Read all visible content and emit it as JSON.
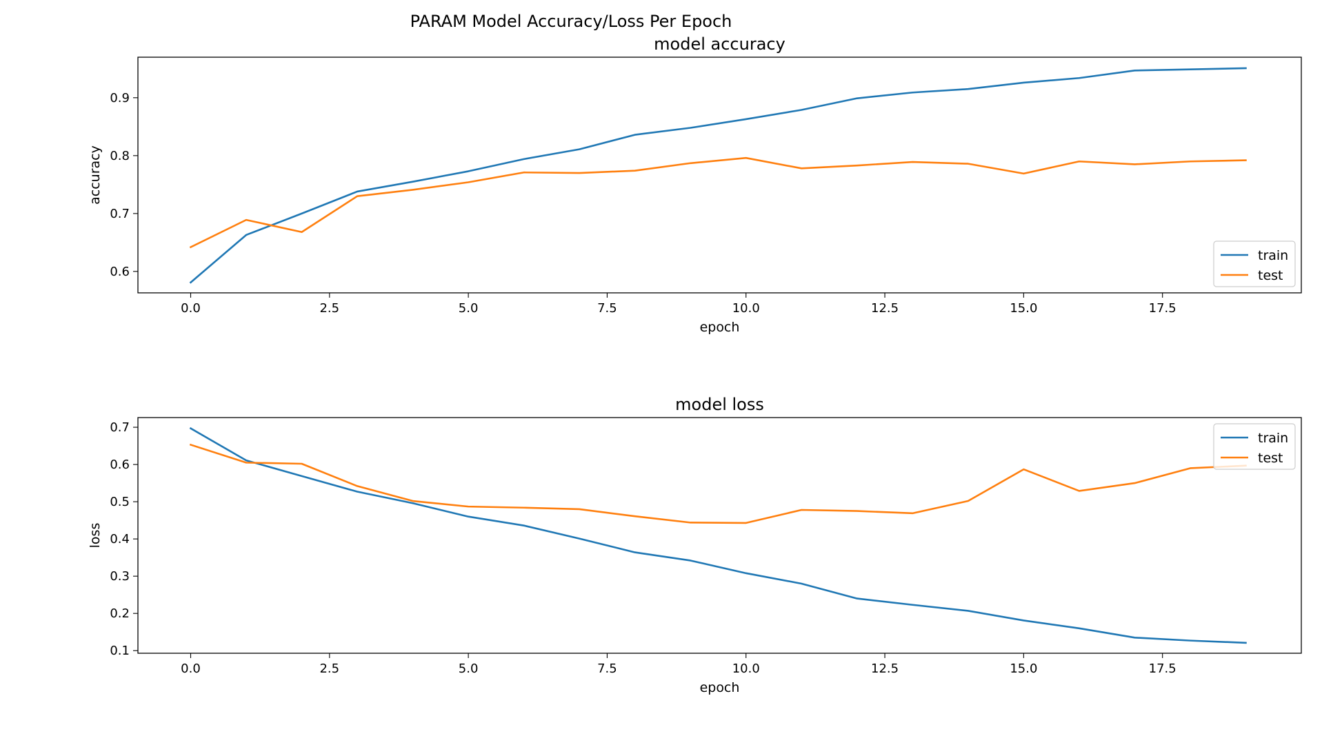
{
  "figure": {
    "suptitle": "PARAM Model Accuracy/Loss Per Epoch"
  },
  "chart_data": [
    {
      "type": "line",
      "title": "model accuracy",
      "xlabel": "epoch",
      "ylabel": "accuracy",
      "xlim": [
        -0.95,
        20.0
      ],
      "ylim": [
        0.563,
        0.97
      ],
      "x_ticks": [
        0.0,
        2.5,
        5.0,
        7.5,
        10.0,
        12.5,
        15.0,
        17.5
      ],
      "x_tick_labels": [
        "0.0",
        "2.5",
        "5.0",
        "7.5",
        "10.0",
        "12.5",
        "15.0",
        "17.5"
      ],
      "y_ticks": [
        0.6,
        0.7,
        0.8,
        0.9
      ],
      "y_tick_labels": [
        "0.6",
        "0.7",
        "0.8",
        "0.9"
      ],
      "legend_position": "lower right",
      "grid": false,
      "x": [
        0,
        1,
        2,
        3,
        4,
        5,
        6,
        7,
        8,
        9,
        10,
        11,
        12,
        13,
        14,
        15,
        16,
        17,
        18,
        19
      ],
      "series": [
        {
          "name": "train",
          "color": "#1f77b4",
          "values": [
            0.581,
            0.663,
            0.7,
            0.738,
            0.755,
            0.773,
            0.794,
            0.811,
            0.836,
            0.848,
            0.863,
            0.879,
            0.899,
            0.909,
            0.915,
            0.926,
            0.934,
            0.947,
            0.949,
            0.951
          ]
        },
        {
          "name": "test",
          "color": "#ff7f0e",
          "values": [
            0.642,
            0.689,
            0.668,
            0.73,
            0.741,
            0.754,
            0.771,
            0.77,
            0.774,
            0.787,
            0.796,
            0.778,
            0.783,
            0.789,
            0.786,
            0.769,
            0.79,
            0.785,
            0.79,
            0.792
          ]
        }
      ]
    },
    {
      "type": "line",
      "title": "model loss",
      "xlabel": "epoch",
      "ylabel": "loss",
      "xlim": [
        -0.95,
        20.0
      ],
      "ylim": [
        0.093,
        0.726
      ],
      "x_ticks": [
        0.0,
        2.5,
        5.0,
        7.5,
        10.0,
        12.5,
        15.0,
        17.5
      ],
      "x_tick_labels": [
        "0.0",
        "2.5",
        "5.0",
        "7.5",
        "10.0",
        "12.5",
        "15.0",
        "17.5"
      ],
      "y_ticks": [
        0.1,
        0.2,
        0.3,
        0.4,
        0.5,
        0.6,
        0.7
      ],
      "y_tick_labels": [
        "0.1",
        "0.2",
        "0.3",
        "0.4",
        "0.5",
        "0.6",
        "0.7"
      ],
      "legend_position": "upper right",
      "grid": false,
      "x": [
        0,
        1,
        2,
        3,
        4,
        5,
        6,
        7,
        8,
        9,
        10,
        11,
        12,
        13,
        14,
        15,
        16,
        17,
        18,
        19
      ],
      "series": [
        {
          "name": "train",
          "color": "#1f77b4",
          "values": [
            0.697,
            0.611,
            0.569,
            0.527,
            0.496,
            0.46,
            0.436,
            0.401,
            0.364,
            0.342,
            0.308,
            0.28,
            0.24,
            0.223,
            0.207,
            0.181,
            0.16,
            0.135,
            0.127,
            0.121
          ]
        },
        {
          "name": "test",
          "color": "#ff7f0e",
          "values": [
            0.653,
            0.605,
            0.602,
            0.542,
            0.502,
            0.487,
            0.484,
            0.48,
            0.461,
            0.444,
            0.443,
            0.478,
            0.475,
            0.469,
            0.502,
            0.587,
            0.529,
            0.55,
            0.59,
            0.597
          ]
        }
      ]
    }
  ]
}
